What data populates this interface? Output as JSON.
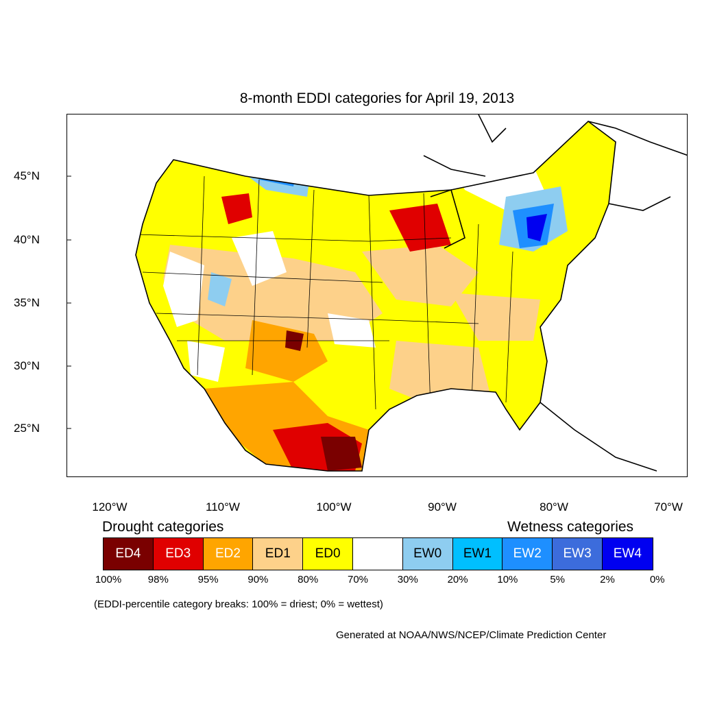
{
  "title": "8-month EDDI categories for April 19, 2013",
  "map": {
    "projection": "lambert-conformal",
    "region": "CONUS",
    "lat_labels": [
      "45°N",
      "40°N",
      "35°N",
      "30°N",
      "25°N"
    ],
    "lon_labels": [
      "120°W",
      "110°W",
      "100°W",
      "90°W",
      "80°W",
      "70°W"
    ]
  },
  "legend": {
    "drought_heading": "Drought categories",
    "wetness_heading": "Wetness categories",
    "categories": [
      {
        "label": "ED4",
        "color": "#7a0000",
        "text_color": "#ffffff"
      },
      {
        "label": "ED3",
        "color": "#e00000",
        "text_color": "#ffffff"
      },
      {
        "label": "ED2",
        "color": "#ffa500",
        "text_color": "#ffffff"
      },
      {
        "label": "ED1",
        "color": "#fdd18a",
        "text_color": "#000000"
      },
      {
        "label": "ED0",
        "color": "#ffff00",
        "text_color": "#000000"
      },
      {
        "label": "",
        "color": "#ffffff",
        "text_color": "#000000"
      },
      {
        "label": "EW0",
        "color": "#8ecdf0",
        "text_color": "#000000"
      },
      {
        "label": "EW1",
        "color": "#00bfff",
        "text_color": "#000000"
      },
      {
        "label": "EW2",
        "color": "#1e8fff",
        "text_color": "#ffffff"
      },
      {
        "label": "EW3",
        "color": "#3c6cdc",
        "text_color": "#ffffff"
      },
      {
        "label": "EW4",
        "color": "#0000f0",
        "text_color": "#ffffff"
      }
    ],
    "breaks": [
      "100%",
      "98%",
      "95%",
      "90%",
      "80%",
      "70%",
      "30%",
      "20%",
      "10%",
      "5%",
      "2%",
      "0%"
    ],
    "note": "(EDDI-percentile category breaks: 100% = driest; 0% = wettest)"
  },
  "credit": "Generated at NOAA/NWS/NCEP/Climate Prediction Center"
}
